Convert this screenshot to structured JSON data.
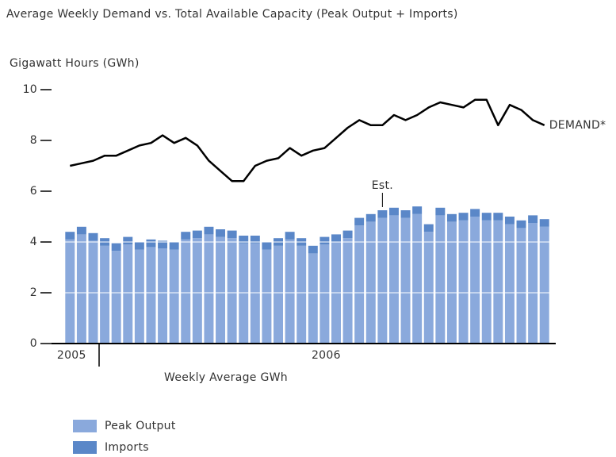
{
  "chart_data": {
    "type": "bar",
    "title": "Average Weekly Demand vs. Total Available Capacity (Peak Output + Imports)",
    "y_axis_label": "Gigawatt Hours (GWh)",
    "x_axis_label": "Weekly Average GWh",
    "annotation": "Est.",
    "categories": [
      "2005",
      null,
      null,
      null,
      null,
      null,
      null,
      null,
      null,
      null,
      null,
      null,
      null,
      null,
      null,
      null,
      null,
      null,
      null,
      null,
      null,
      null,
      "2006",
      null,
      null,
      null,
      null,
      null,
      null,
      null,
      null,
      null,
      null,
      null,
      null,
      null,
      null,
      null,
      null,
      null,
      null,
      null
    ],
    "series": [
      {
        "name": "Peak Output",
        "color": "#8aa9dc",
        "values": [
          4.1,
          4.3,
          4.05,
          3.85,
          3.65,
          3.9,
          3.7,
          3.8,
          3.75,
          3.7,
          4.1,
          4.15,
          4.3,
          4.2,
          4.15,
          3.95,
          3.95,
          3.7,
          3.85,
          4.1,
          3.85,
          3.55,
          3.9,
          4.0,
          4.15,
          4.65,
          4.8,
          4.95,
          5.05,
          4.95,
          5.1,
          4.4,
          5.05,
          4.8,
          4.85,
          5.0,
          4.85,
          4.85,
          4.7,
          4.55,
          4.75,
          4.6
        ]
      },
      {
        "name": "Imports",
        "color": "#5a87c8",
        "values": [
          0.3,
          0.3,
          0.3,
          0.3,
          0.3,
          0.3,
          0.3,
          0.3,
          0.3,
          0.3,
          0.3,
          0.3,
          0.3,
          0.3,
          0.3,
          0.3,
          0.3,
          0.3,
          0.3,
          0.3,
          0.3,
          0.3,
          0.3,
          0.3,
          0.3,
          0.3,
          0.3,
          0.3,
          0.3,
          0.3,
          0.3,
          0.3,
          0.3,
          0.3,
          0.3,
          0.3,
          0.3,
          0.3,
          0.3,
          0.3,
          0.3,
          0.3
        ]
      },
      {
        "name": "DEMAND*",
        "type": "line",
        "color": "#000000",
        "values": [
          7.0,
          7.1,
          7.2,
          7.4,
          7.4,
          7.6,
          7.8,
          7.9,
          8.2,
          7.9,
          8.1,
          7.8,
          7.2,
          6.8,
          6.4,
          6.4,
          7.0,
          7.2,
          7.3,
          7.7,
          7.4,
          7.6,
          7.7,
          8.1,
          8.5,
          8.8,
          8.6,
          8.6,
          9.0,
          8.8,
          9.0,
          9.3,
          9.5,
          9.4,
          9.3,
          9.6,
          9.6,
          8.6,
          9.4,
          9.2,
          8.8,
          8.6
        ]
      }
    ],
    "annotation_index": 27,
    "ylim": [
      0,
      10
    ],
    "yticks": [
      0,
      2,
      4,
      6,
      8,
      10
    ],
    "grid": true,
    "legend": "bottom-left"
  }
}
